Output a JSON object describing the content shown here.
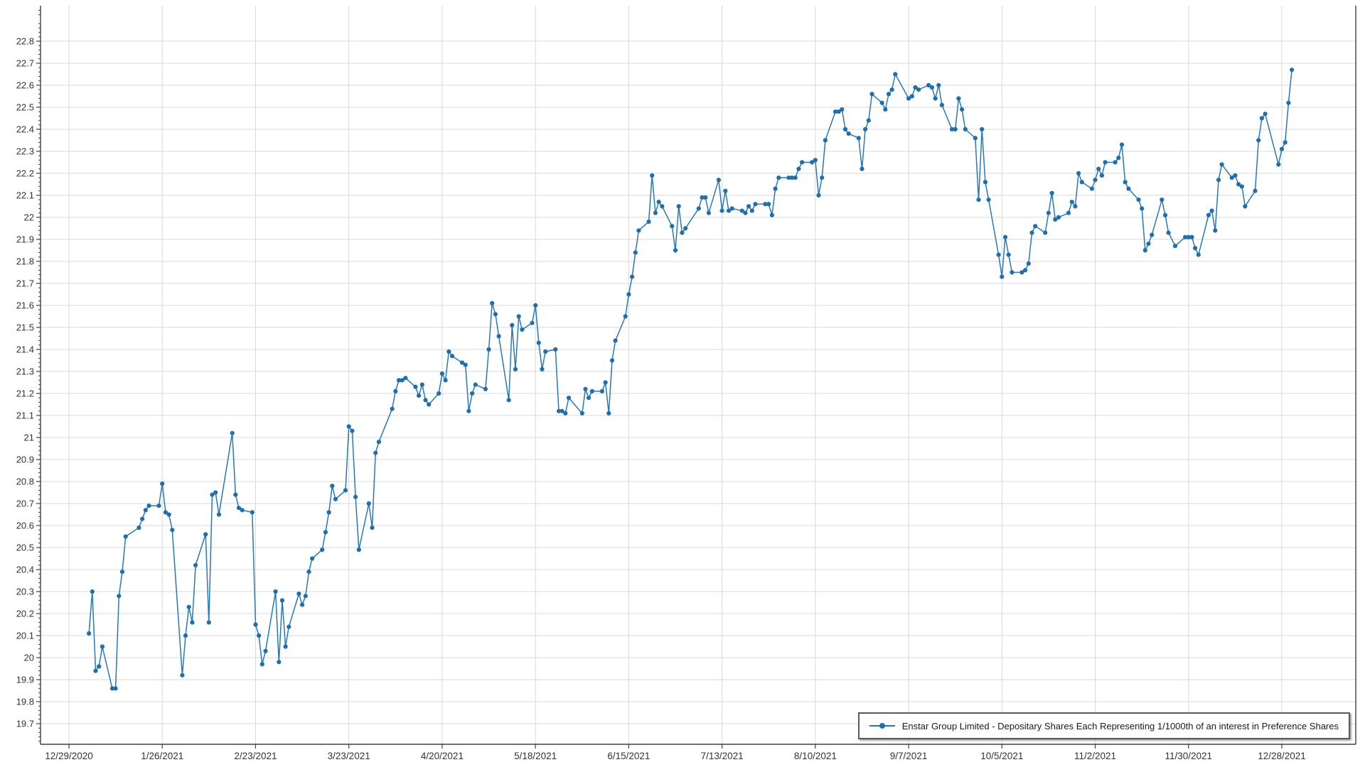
{
  "chart_data": {
    "type": "line",
    "title": "",
    "xlabel": "",
    "ylabel": "",
    "grid": true,
    "legend_position": "bottom-right",
    "axis_color": "#404040",
    "grid_color": "#d9d9d9",
    "text_color": "#333333",
    "background_color": "#ffffff",
    "x_tick_labels": [
      "12/29/2020",
      "1/26/2021",
      "2/23/2021",
      "3/23/2021",
      "4/20/2021",
      "5/18/2021",
      "6/15/2021",
      "7/13/2021",
      "8/10/2021",
      "9/7/2021",
      "10/5/2021",
      "11/2/2021",
      "11/30/2021",
      "12/28/2021"
    ],
    "y_tick_labels": [
      "19.7",
      "19.8",
      "19.9",
      "20",
      "20.1",
      "20.2",
      "20.3",
      "20.4",
      "20.5",
      "20.6",
      "20.7",
      "20.8",
      "20.9",
      "21",
      "21.1",
      "21.2",
      "21.3",
      "21.4",
      "21.5",
      "21.6",
      "21.7",
      "21.8",
      "21.9",
      "22",
      "22.1",
      "22.2",
      "22.3",
      "22.4",
      "22.5",
      "22.6",
      "22.7",
      "22.8"
    ],
    "ylim": [
      19.61,
      22.96
    ],
    "series": [
      {
        "name": "Enstar Group Limited - Depositary Shares Each Representing 1/1000th of an interest in Preference Shares",
        "color": "#2878b8",
        "marker_color": "#1f6fae",
        "dates": [
          "1/4/2021",
          "1/5/2021",
          "1/6/2021",
          "1/7/2021",
          "1/8/2021",
          "1/11/2021",
          "1/12/2021",
          "1/13/2021",
          "1/14/2021",
          "1/15/2021",
          "1/19/2021",
          "1/20/2021",
          "1/21/2021",
          "1/22/2021",
          "1/25/2021",
          "1/26/2021",
          "1/27/2021",
          "1/28/2021",
          "1/29/2021",
          "2/1/2021",
          "2/2/2021",
          "2/3/2021",
          "2/4/2021",
          "2/5/2021",
          "2/8/2021",
          "2/9/2021",
          "2/10/2021",
          "2/11/2021",
          "2/12/2021",
          "2/16/2021",
          "2/17/2021",
          "2/18/2021",
          "2/19/2021",
          "2/22/2021",
          "2/23/2021",
          "2/24/2021",
          "2/25/2021",
          "2/26/2021",
          "3/1/2021",
          "3/2/2021",
          "3/3/2021",
          "3/4/2021",
          "3/5/2021",
          "3/8/2021",
          "3/9/2021",
          "3/10/2021",
          "3/11/2021",
          "3/12/2021",
          "3/15/2021",
          "3/16/2021",
          "3/17/2021",
          "3/18/2021",
          "3/19/2021",
          "3/22/2021",
          "3/23/2021",
          "3/24/2021",
          "3/25/2021",
          "3/26/2021",
          "3/29/2021",
          "3/30/2021",
          "3/31/2021",
          "4/1/2021",
          "4/5/2021",
          "4/6/2021",
          "4/7/2021",
          "4/8/2021",
          "4/9/2021",
          "4/12/2021",
          "4/13/2021",
          "4/14/2021",
          "4/15/2021",
          "4/16/2021",
          "4/19/2021",
          "4/20/2021",
          "4/21/2021",
          "4/22/2021",
          "4/23/2021",
          "4/26/2021",
          "4/27/2021",
          "4/28/2021",
          "4/29/2021",
          "4/30/2021",
          "5/3/2021",
          "5/4/2021",
          "5/5/2021",
          "5/6/2021",
          "5/7/2021",
          "5/10/2021",
          "5/11/2021",
          "5/12/2021",
          "5/13/2021",
          "5/14/2021",
          "5/17/2021",
          "5/18/2021",
          "5/19/2021",
          "5/20/2021",
          "5/21/2021",
          "5/24/2021",
          "5/25/2021",
          "5/26/2021",
          "5/27/2021",
          "5/28/2021",
          "6/1/2021",
          "6/2/2021",
          "6/3/2021",
          "6/4/2021",
          "6/7/2021",
          "6/8/2021",
          "6/9/2021",
          "6/10/2021",
          "6/11/2021",
          "6/14/2021",
          "6/15/2021",
          "6/16/2021",
          "6/17/2021",
          "6/18/2021",
          "6/21/2021",
          "6/22/2021",
          "6/23/2021",
          "6/24/2021",
          "6/25/2021",
          "6/28/2021",
          "6/29/2021",
          "6/30/2021",
          "7/1/2021",
          "7/2/2021",
          "7/6/2021",
          "7/7/2021",
          "7/8/2021",
          "7/9/2021",
          "7/12/2021",
          "7/13/2021",
          "7/14/2021",
          "7/15/2021",
          "7/16/2021",
          "7/19/2021",
          "7/20/2021",
          "7/21/2021",
          "7/22/2021",
          "7/23/2021",
          "7/26/2021",
          "7/27/2021",
          "7/28/2021",
          "7/29/2021",
          "7/30/2021",
          "8/2/2021",
          "8/3/2021",
          "8/4/2021",
          "8/5/2021",
          "8/6/2021",
          "8/9/2021",
          "8/10/2021",
          "8/11/2021",
          "8/12/2021",
          "8/13/2021",
          "8/16/2021",
          "8/17/2021",
          "8/18/2021",
          "8/19/2021",
          "8/20/2021",
          "8/23/2021",
          "8/24/2021",
          "8/25/2021",
          "8/26/2021",
          "8/27/2021",
          "8/30/2021",
          "8/31/2021",
          "9/1/2021",
          "9/2/2021",
          "9/3/2021",
          "9/7/2021",
          "9/8/2021",
          "9/9/2021",
          "9/10/2021",
          "9/13/2021",
          "9/14/2021",
          "9/15/2021",
          "9/16/2021",
          "9/17/2021",
          "9/20/2021",
          "9/21/2021",
          "9/22/2021",
          "9/23/2021",
          "9/24/2021",
          "9/27/2021",
          "9/28/2021",
          "9/29/2021",
          "9/30/2021",
          "10/1/2021",
          "10/4/2021",
          "10/5/2021",
          "10/6/2021",
          "10/7/2021",
          "10/8/2021",
          "10/11/2021",
          "10/12/2021",
          "10/13/2021",
          "10/14/2021",
          "10/15/2021",
          "10/18/2021",
          "10/19/2021",
          "10/20/2021",
          "10/21/2021",
          "10/22/2021",
          "10/25/2021",
          "10/26/2021",
          "10/27/2021",
          "10/28/2021",
          "10/29/2021",
          "11/1/2021",
          "11/2/2021",
          "11/3/2021",
          "11/4/2021",
          "11/5/2021",
          "11/8/2021",
          "11/9/2021",
          "11/10/2021",
          "11/11/2021",
          "11/12/2021",
          "11/15/2021",
          "11/16/2021",
          "11/17/2021",
          "11/18/2021",
          "11/19/2021",
          "11/22/2021",
          "11/23/2021",
          "11/24/2021",
          "11/26/2021",
          "11/29/2021",
          "11/30/2021",
          "12/1/2021",
          "12/2/2021",
          "12/3/2021",
          "12/6/2021",
          "12/7/2021",
          "12/8/2021",
          "12/9/2021",
          "12/10/2021",
          "12/13/2021",
          "12/14/2021",
          "12/15/2021",
          "12/16/2021",
          "12/17/2021",
          "12/20/2021",
          "12/21/2021",
          "12/22/2021",
          "12/23/2021",
          "12/27/2021",
          "12/28/2021",
          "12/29/2021",
          "12/30/2021",
          "12/31/2021"
        ],
        "values": [
          20.11,
          20.3,
          19.94,
          19.96,
          20.05,
          19.86,
          19.86,
          20.28,
          20.39,
          20.55,
          20.59,
          20.63,
          20.67,
          20.69,
          20.69,
          20.79,
          20.66,
          20.65,
          20.58,
          19.92,
          20.1,
          20.23,
          20.16,
          20.42,
          20.56,
          20.16,
          20.74,
          20.75,
          20.65,
          21.02,
          20.74,
          20.68,
          20.67,
          20.66,
          20.15,
          20.1,
          19.97,
          20.03,
          20.3,
          19.98,
          20.26,
          20.05,
          20.14,
          20.29,
          20.24,
          20.28,
          20.39,
          20.45,
          20.49,
          20.57,
          20.66,
          20.78,
          20.72,
          20.76,
          21.05,
          21.03,
          20.73,
          20.49,
          20.7,
          20.59,
          20.93,
          20.98,
          21.13,
          21.21,
          21.26,
          21.26,
          21.27,
          21.23,
          21.19,
          21.24,
          21.17,
          21.15,
          21.2,
          21.29,
          21.26,
          21.39,
          21.37,
          21.34,
          21.33,
          21.12,
          21.2,
          21.24,
          21.22,
          21.4,
          21.61,
          21.56,
          21.46,
          21.17,
          21.51,
          21.31,
          21.55,
          21.49,
          21.52,
          21.6,
          21.43,
          21.31,
          21.39,
          21.4,
          21.12,
          21.12,
          21.11,
          21.18,
          21.11,
          21.22,
          21.18,
          21.21,
          21.21,
          21.25,
          21.11,
          21.35,
          21.44,
          21.55,
          21.65,
          21.73,
          21.84,
          21.94,
          21.98,
          22.19,
          22.02,
          22.07,
          22.05,
          21.96,
          21.85,
          22.05,
          21.93,
          21.95,
          22.04,
          22.09,
          22.09,
          22.02,
          22.17,
          22.03,
          22.12,
          22.03,
          22.04,
          22.03,
          22.02,
          22.05,
          22.03,
          22.06,
          22.06,
          22.06,
          22.01,
          22.13,
          22.18,
          22.18,
          22.18,
          22.18,
          22.22,
          22.25,
          22.25,
          22.26,
          22.1,
          22.18,
          22.35,
          22.48,
          22.48,
          22.49,
          22.4,
          22.38,
          22.36,
          22.22,
          22.4,
          22.44,
          22.56,
          22.52,
          22.49,
          22.56,
          22.58,
          22.65,
          22.54,
          22.55,
          22.59,
          22.58,
          22.6,
          22.59,
          22.54,
          22.6,
          22.51,
          22.4,
          22.4,
          22.54,
          22.49,
          22.4,
          22.36,
          22.08,
          22.4,
          22.16,
          22.08,
          21.83,
          21.73,
          21.91,
          21.83,
          21.75,
          21.75,
          21.76,
          21.79,
          21.93,
          21.96,
          21.93,
          22.02,
          22.11,
          21.99,
          22.0,
          22.02,
          22.07,
          22.05,
          22.2,
          22.16,
          22.13,
          22.17,
          22.22,
          22.19,
          22.25,
          22.25,
          22.27,
          22.33,
          22.16,
          22.13,
          22.08,
          22.04,
          21.85,
          21.88,
          21.92,
          22.08,
          22.01,
          21.93,
          21.87,
          21.91,
          21.91,
          21.91,
          21.86,
          21.83,
          22.01,
          22.03,
          21.94,
          22.17,
          22.24,
          22.18,
          22.19,
          22.15,
          22.14,
          22.05,
          22.12,
          22.35,
          22.45,
          22.47,
          22.24,
          22.31,
          22.34,
          22.52,
          22.67
        ]
      }
    ]
  }
}
